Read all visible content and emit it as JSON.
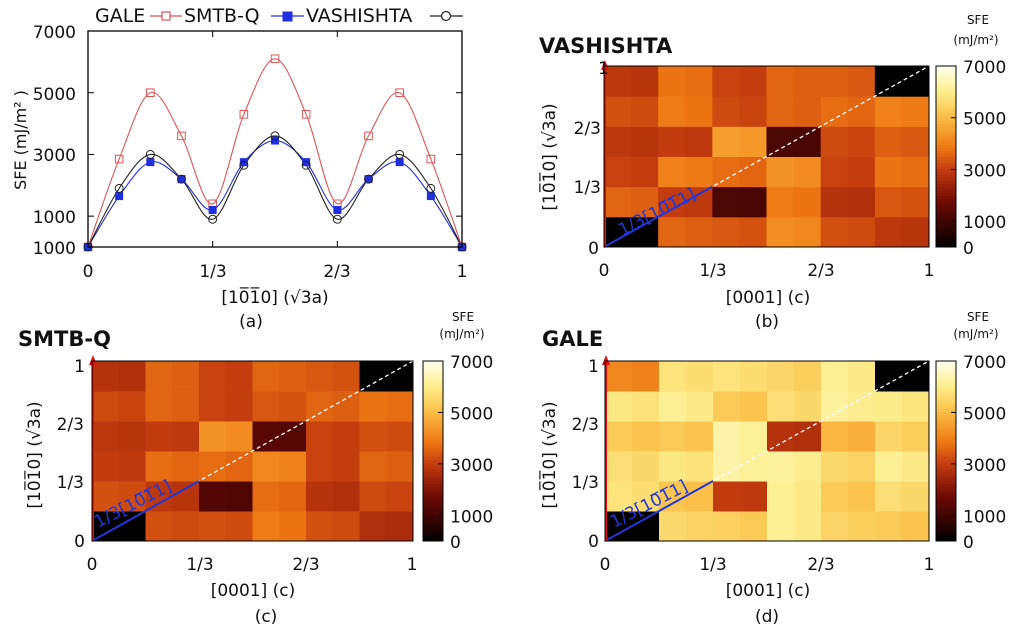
{
  "chart_data": [
    {
      "type": "line",
      "panel_label": "(a)",
      "xlabel": "[10̅1̅0] (√3a)",
      "ylabel": "SFE (mJ/m² )",
      "xlim": [
        0,
        1
      ],
      "ylim": [
        0,
        7000
      ],
      "x_tick_labels": [
        "0",
        "1/3",
        "2/3",
        "1"
      ],
      "y_tick_labels": [
        "1000",
        "3000",
        "5000",
        "7000"
      ],
      "y_tick_values": [
        1000,
        3000,
        5000,
        7000
      ],
      "legend_position": "top",
      "x": [
        0,
        0.0833,
        0.1667,
        0.25,
        0.3333,
        0.4167,
        0.5,
        0.5833,
        0.6667,
        0.75,
        0.8333,
        0.9167,
        1
      ],
      "series": [
        {
          "name": "GALE",
          "marker": "open-square",
          "color": "#e05555",
          "values": [
            0,
            2850,
            5000,
            3600,
            1400,
            4300,
            6100,
            4300,
            1400,
            3600,
            5000,
            2850,
            0
          ]
        },
        {
          "name": "SMTB-Q",
          "marker": "filled-square",
          "color": "#1f2fe0",
          "values": [
            0,
            1650,
            2750,
            2200,
            1200,
            2750,
            3450,
            2750,
            1200,
            2200,
            2750,
            1650,
            0
          ]
        },
        {
          "name": "VASHISHTA",
          "marker": "open-circle",
          "color": "#222222",
          "values": [
            0,
            1900,
            3000,
            2200,
            900,
            2650,
            3600,
            2650,
            900,
            2200,
            3000,
            1900,
            0
          ]
        }
      ]
    },
    {
      "type": "heatmap",
      "panel_label": "(b)",
      "title": "VASHISHTA",
      "xlabel": "[0001] (c)",
      "ylabel": "[10̅1̅0] (√3a)",
      "tick_labels": [
        "0",
        "1/3",
        "2/3",
        "1"
      ],
      "colorbar": {
        "title": "SFE",
        "unit": "(mJ/m²)",
        "min": 0,
        "max": 7000,
        "ticks": [
          0,
          1000,
          3000,
          5000,
          7000
        ]
      },
      "annotation": "1/3[10̅1̅1]",
      "rows": 6,
      "cols": 6,
      "values": [
        [
          0,
          3600,
          3400,
          4200,
          3300,
          2900
        ],
        [
          3600,
          3000,
          1200,
          3900,
          2800,
          3400
        ],
        [
          3100,
          4000,
          3700,
          4300,
          3100,
          3800
        ],
        [
          2900,
          3000,
          4500,
          1200,
          3200,
          3500
        ],
        [
          3300,
          3900,
          3200,
          3600,
          3700,
          4000
        ],
        [
          2900,
          3800,
          3100,
          3600,
          3500,
          0
        ]
      ]
    },
    {
      "type": "heatmap",
      "panel_label": "(c)",
      "title": "SMTB-Q",
      "xlabel": "[0001] (c)",
      "ylabel": "[10̅1̅0] (√3a)",
      "tick_labels": [
        "0",
        "1/3",
        "2/3",
        "1"
      ],
      "colorbar": {
        "title": "SFE",
        "unit": "(mJ/m²)",
        "min": 0,
        "max": 7000,
        "ticks": [
          0,
          1000,
          3000,
          5000,
          7000
        ]
      },
      "annotation": "1/3[10̅1̅1]",
      "rows": 6,
      "cols": 6,
      "values": [
        [
          0,
          3300,
          3300,
          3900,
          3300,
          2700
        ],
        [
          3300,
          2900,
          1300,
          3700,
          2800,
          3200
        ],
        [
          3000,
          3700,
          3700,
          4100,
          3100,
          3600
        ],
        [
          2900,
          3000,
          4300,
          1400,
          3100,
          3300
        ],
        [
          3200,
          3600,
          3100,
          3400,
          3600,
          3800
        ],
        [
          2800,
          3600,
          3100,
          3600,
          3400,
          0
        ]
      ]
    },
    {
      "type": "heatmap",
      "panel_label": "(d)",
      "title": "GALE",
      "xlabel": "[0001] (c)",
      "ylabel": "[10̅1̅0] (√3a)",
      "tick_labels": [
        "0",
        "1/3",
        "2/3",
        "1"
      ],
      "colorbar": {
        "title": "SFE",
        "unit": "(mJ/m²)",
        "min": 0,
        "max": 7000,
        "ticks": [
          0,
          1000,
          3000,
          5000,
          7000
        ]
      },
      "annotation": "1/3[10̅1̅1]",
      "rows": 6,
      "cols": 6,
      "values": [
        [
          0,
          5600,
          5400,
          6100,
          5500,
          5300
        ],
        [
          5800,
          5200,
          3000,
          6100,
          5300,
          5700
        ],
        [
          5700,
          5900,
          6300,
          6200,
          5600,
          6100
        ],
        [
          5300,
          5300,
          6300,
          2800,
          4900,
          5500
        ],
        [
          5900,
          6100,
          5300,
          5700,
          6200,
          6000
        ],
        [
          4100,
          5800,
          5800,
          5500,
          6100,
          0
        ]
      ]
    }
  ]
}
